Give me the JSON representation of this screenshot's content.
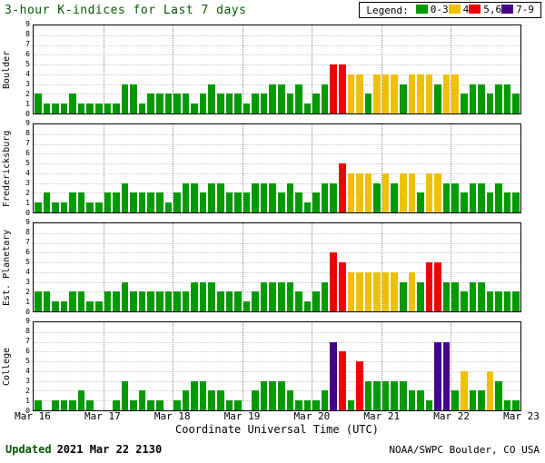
{
  "title": "3-hour K-indices for Last 7 days",
  "legend": {
    "label": "Legend:",
    "items": [
      {
        "label": "0-3",
        "color": "#009a00"
      },
      {
        "label": "4",
        "color": "#efc000"
      },
      {
        "label": "5,6",
        "color": "#f00000"
      },
      {
        "label": "7-9",
        "color": "#44058c"
      }
    ]
  },
  "xlabel": "Coordinate Universal Time (UTC)",
  "x_ticks": [
    "Mar 16",
    "Mar 17",
    "Mar 18",
    "Mar 19",
    "Mar 20",
    "Mar 21",
    "Mar 22",
    "Mar 23"
  ],
  "footer": {
    "updated_label": "Updated",
    "updated_value": "2021 Mar 22 2130",
    "credit": "NOAA/SWPC Boulder, CO USA"
  },
  "chart_data": {
    "type": "bar",
    "ylim": [
      0,
      9
    ],
    "y_ticks": [
      0,
      1,
      2,
      3,
      4,
      5,
      6,
      7,
      8,
      9
    ],
    "days": 7,
    "bins_per_day": 8,
    "grid": true,
    "legend_position": "top-right",
    "color_rules": [
      {
        "min": 0,
        "max": 3,
        "color": "#009a00"
      },
      {
        "min": 4,
        "max": 4,
        "color": "#efc000"
      },
      {
        "min": 5,
        "max": 6,
        "color": "#f00000"
      },
      {
        "min": 7,
        "max": 9,
        "color": "#44058c"
      }
    ],
    "series": [
      {
        "name": "Boulder",
        "values": [
          2,
          1,
          1,
          1,
          2,
          1,
          1,
          1,
          1,
          1,
          3,
          3,
          1,
          2,
          2,
          2,
          2,
          2,
          1,
          2,
          3,
          2,
          2,
          2,
          1,
          2,
          2,
          3,
          3,
          2,
          3,
          1,
          2,
          3,
          5,
          5,
          4,
          4,
          2,
          4,
          4,
          4,
          3,
          4,
          4,
          4,
          3,
          4,
          4,
          2,
          3,
          3,
          2,
          3,
          3,
          2
        ]
      },
      {
        "name": "Fredericksburg",
        "values": [
          1,
          2,
          1,
          1,
          2,
          2,
          1,
          1,
          2,
          2,
          3,
          2,
          2,
          2,
          2,
          1,
          2,
          3,
          3,
          2,
          3,
          3,
          2,
          2,
          2,
          3,
          3,
          3,
          2,
          3,
          2,
          1,
          2,
          3,
          3,
          5,
          4,
          4,
          4,
          3,
          4,
          3,
          4,
          4,
          2,
          4,
          4,
          3,
          3,
          2,
          3,
          3,
          2,
          3,
          2,
          2
        ]
      },
      {
        "name": "Est. Planetary",
        "values": [
          2,
          2,
          1,
          1,
          2,
          2,
          1,
          1,
          2,
          2,
          3,
          2,
          2,
          2,
          2,
          2,
          2,
          2,
          3,
          3,
          3,
          2,
          2,
          2,
          1,
          2,
          3,
          3,
          3,
          3,
          2,
          1,
          2,
          3,
          6,
          5,
          4,
          4,
          4,
          4,
          4,
          4,
          3,
          4,
          3,
          5,
          5,
          3,
          3,
          2,
          3,
          3,
          2,
          2,
          2,
          2
        ]
      },
      {
        "name": "College",
        "values": [
          1,
          0,
          1,
          1,
          1,
          2,
          1,
          0,
          0,
          1,
          3,
          1,
          2,
          1,
          1,
          0,
          1,
          2,
          3,
          3,
          2,
          2,
          1,
          1,
          0,
          2,
          3,
          3,
          3,
          2,
          1,
          1,
          1,
          2,
          7,
          6,
          1,
          5,
          3,
          3,
          3,
          3,
          3,
          2,
          2,
          1,
          7,
          7,
          2,
          4,
          2,
          2,
          4,
          3,
          1,
          1
        ]
      }
    ]
  }
}
